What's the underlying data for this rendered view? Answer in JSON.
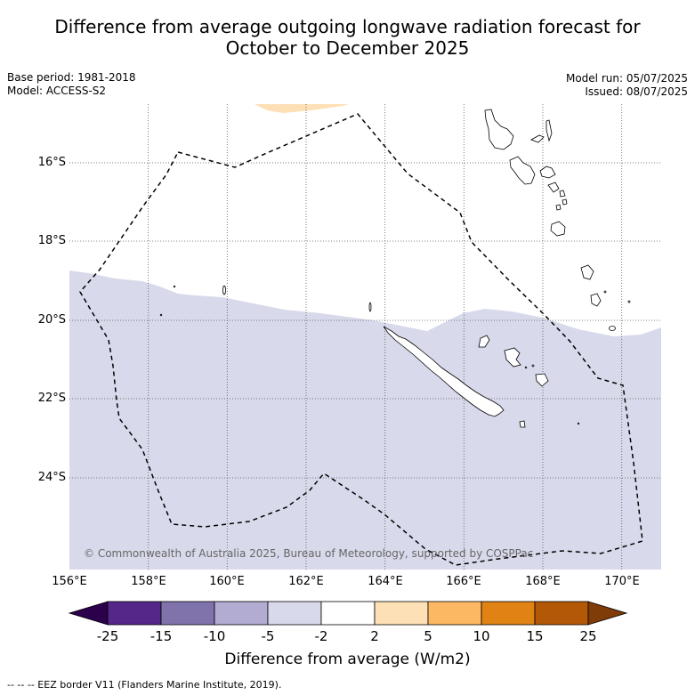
{
  "title_line1": "Difference from average outgoing longwave radiation forecast for",
  "title_line2": "October to December 2025",
  "base_period": "Base period: 1981-2018",
  "model": "Model: ACCESS-S2",
  "model_run": "Model run: 05/07/2025",
  "issued": "Issued: 08/07/2025",
  "copyright": "© Commonwealth of Australia 2025, Bureau of Meteorology, supported by COSPPac",
  "x_ticks": [
    "156°E",
    "158°E",
    "160°E",
    "162°E",
    "164°E",
    "166°E",
    "168°E",
    "170°E"
  ],
  "y_ticks": [
    "16°S",
    "18°S",
    "20°S",
    "22°S",
    "24°S"
  ],
  "colorbar": {
    "ticks": [
      "-25",
      "-15",
      "-10",
      "-5",
      "-2",
      "2",
      "5",
      "10",
      "15",
      "25"
    ],
    "colors": [
      "#2d004b",
      "#542788",
      "#8073ac",
      "#b2abd2",
      "#d8daeb",
      "#ffffff",
      "#fee0b6",
      "#fdb863",
      "#e08214",
      "#b35806",
      "#7f3b08"
    ],
    "label": "Difference from average (W/m2)"
  },
  "footnote": "--  --  -- EEZ border V11 (Flanders Marine Institute, 2019).",
  "map_data": {
    "lon_range": [
      156,
      171
    ],
    "lat_range": [
      -26.4,
      -14.6
    ],
    "light_purple_anomaly_color": "#d8daeb",
    "light_orange_anomaly_color": "#fee0b6"
  }
}
